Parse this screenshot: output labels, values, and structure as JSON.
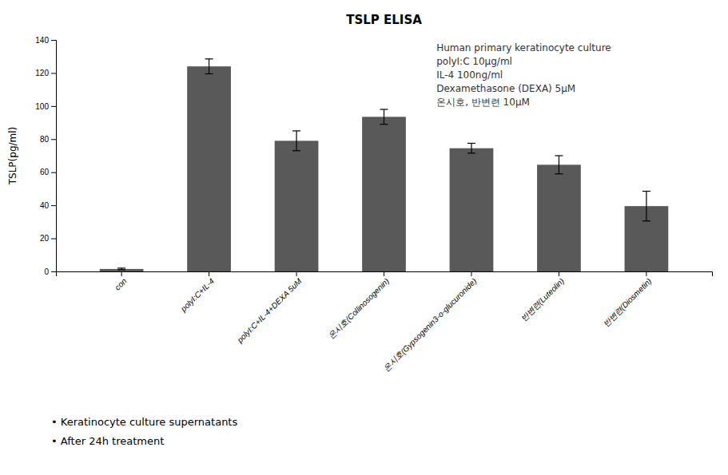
{
  "chart_data": {
    "type": "bar",
    "title": "TSLP ELISA",
    "ylabel": "TSLP(pg/ml)",
    "categories": [
      "con",
      "polyI:C+IL-4",
      "polyI:C+IL-4+DEXA 5uM",
      "온시호(Collinosogenin)",
      "온시호(Gypsogenin3-o-glucuronide)",
      "반변련(Luteolin)",
      "반변련(Diosmetin)"
    ],
    "values": [
      1.5,
      124.0,
      79.0,
      93.5,
      74.5,
      64.5,
      39.5
    ],
    "errors": [
      0.5,
      4.5,
      6.0,
      4.5,
      3.0,
      5.5,
      9.0
    ],
    "color": "#595959",
    "ylim": [
      0,
      140
    ],
    "yticks": [
      0,
      20,
      40,
      60,
      80,
      100,
      120,
      140
    ],
    "grid": false,
    "annotations": [
      [
        "Human primary keratinocyte culture",
        "polyI:C 10μg/ml",
        "IL-4 100ng/ml",
        "Dexamethasone (DEXA) 5μM",
        "온시호, 반변련 10μM"
      ],
      [
        "• Keratinocyte culture supernatants",
        "• After 24h treatment"
      ]
    ]
  }
}
